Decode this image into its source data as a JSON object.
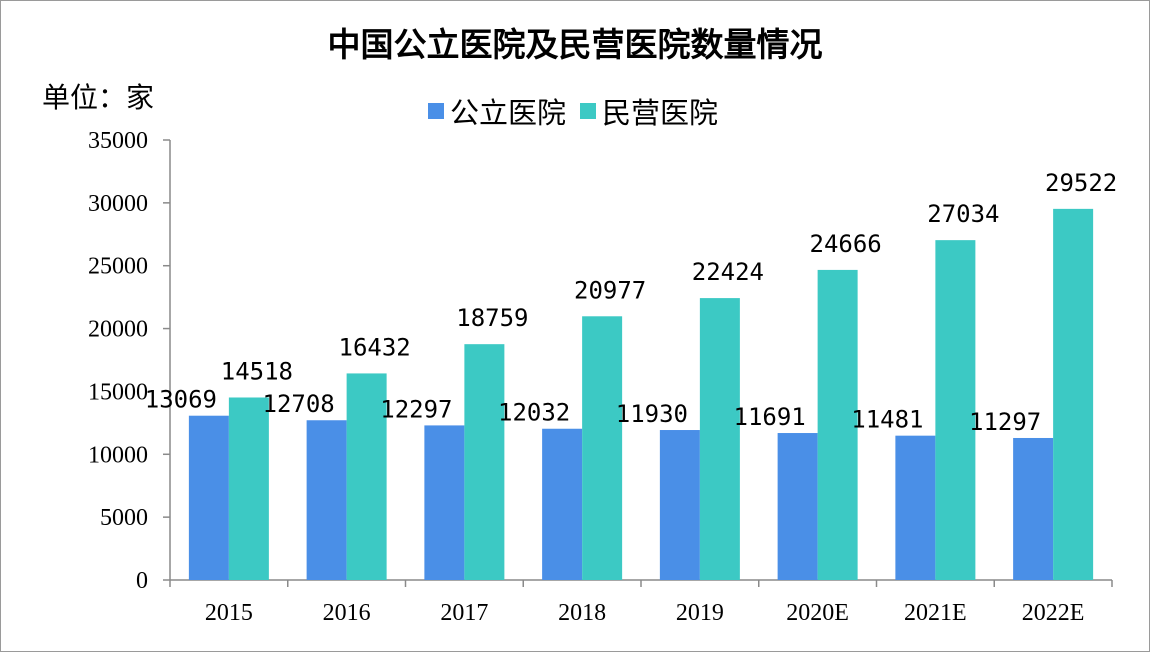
{
  "chart_data": {
    "type": "bar",
    "title": "中国公立医院及民营医院数量情况",
    "unit_label": "单位：家",
    "categories": [
      "2015",
      "2016",
      "2017",
      "2018",
      "2019",
      "2020E",
      "2021E",
      "2022E"
    ],
    "series": [
      {
        "name": "公立医院",
        "color": "#4a8fe7",
        "values": [
          13069,
          12708,
          12297,
          12032,
          11930,
          11691,
          11481,
          11297
        ]
      },
      {
        "name": "民营医院",
        "color": "#3cc9c4",
        "values": [
          14518,
          16432,
          18759,
          20977,
          22424,
          24666,
          27034,
          29522
        ]
      }
    ],
    "ylim": [
      0,
      35000
    ],
    "yticks": [
      0,
      5000,
      10000,
      15000,
      20000,
      25000,
      30000,
      35000
    ],
    "grid": false,
    "legend_position": "top-center"
  }
}
